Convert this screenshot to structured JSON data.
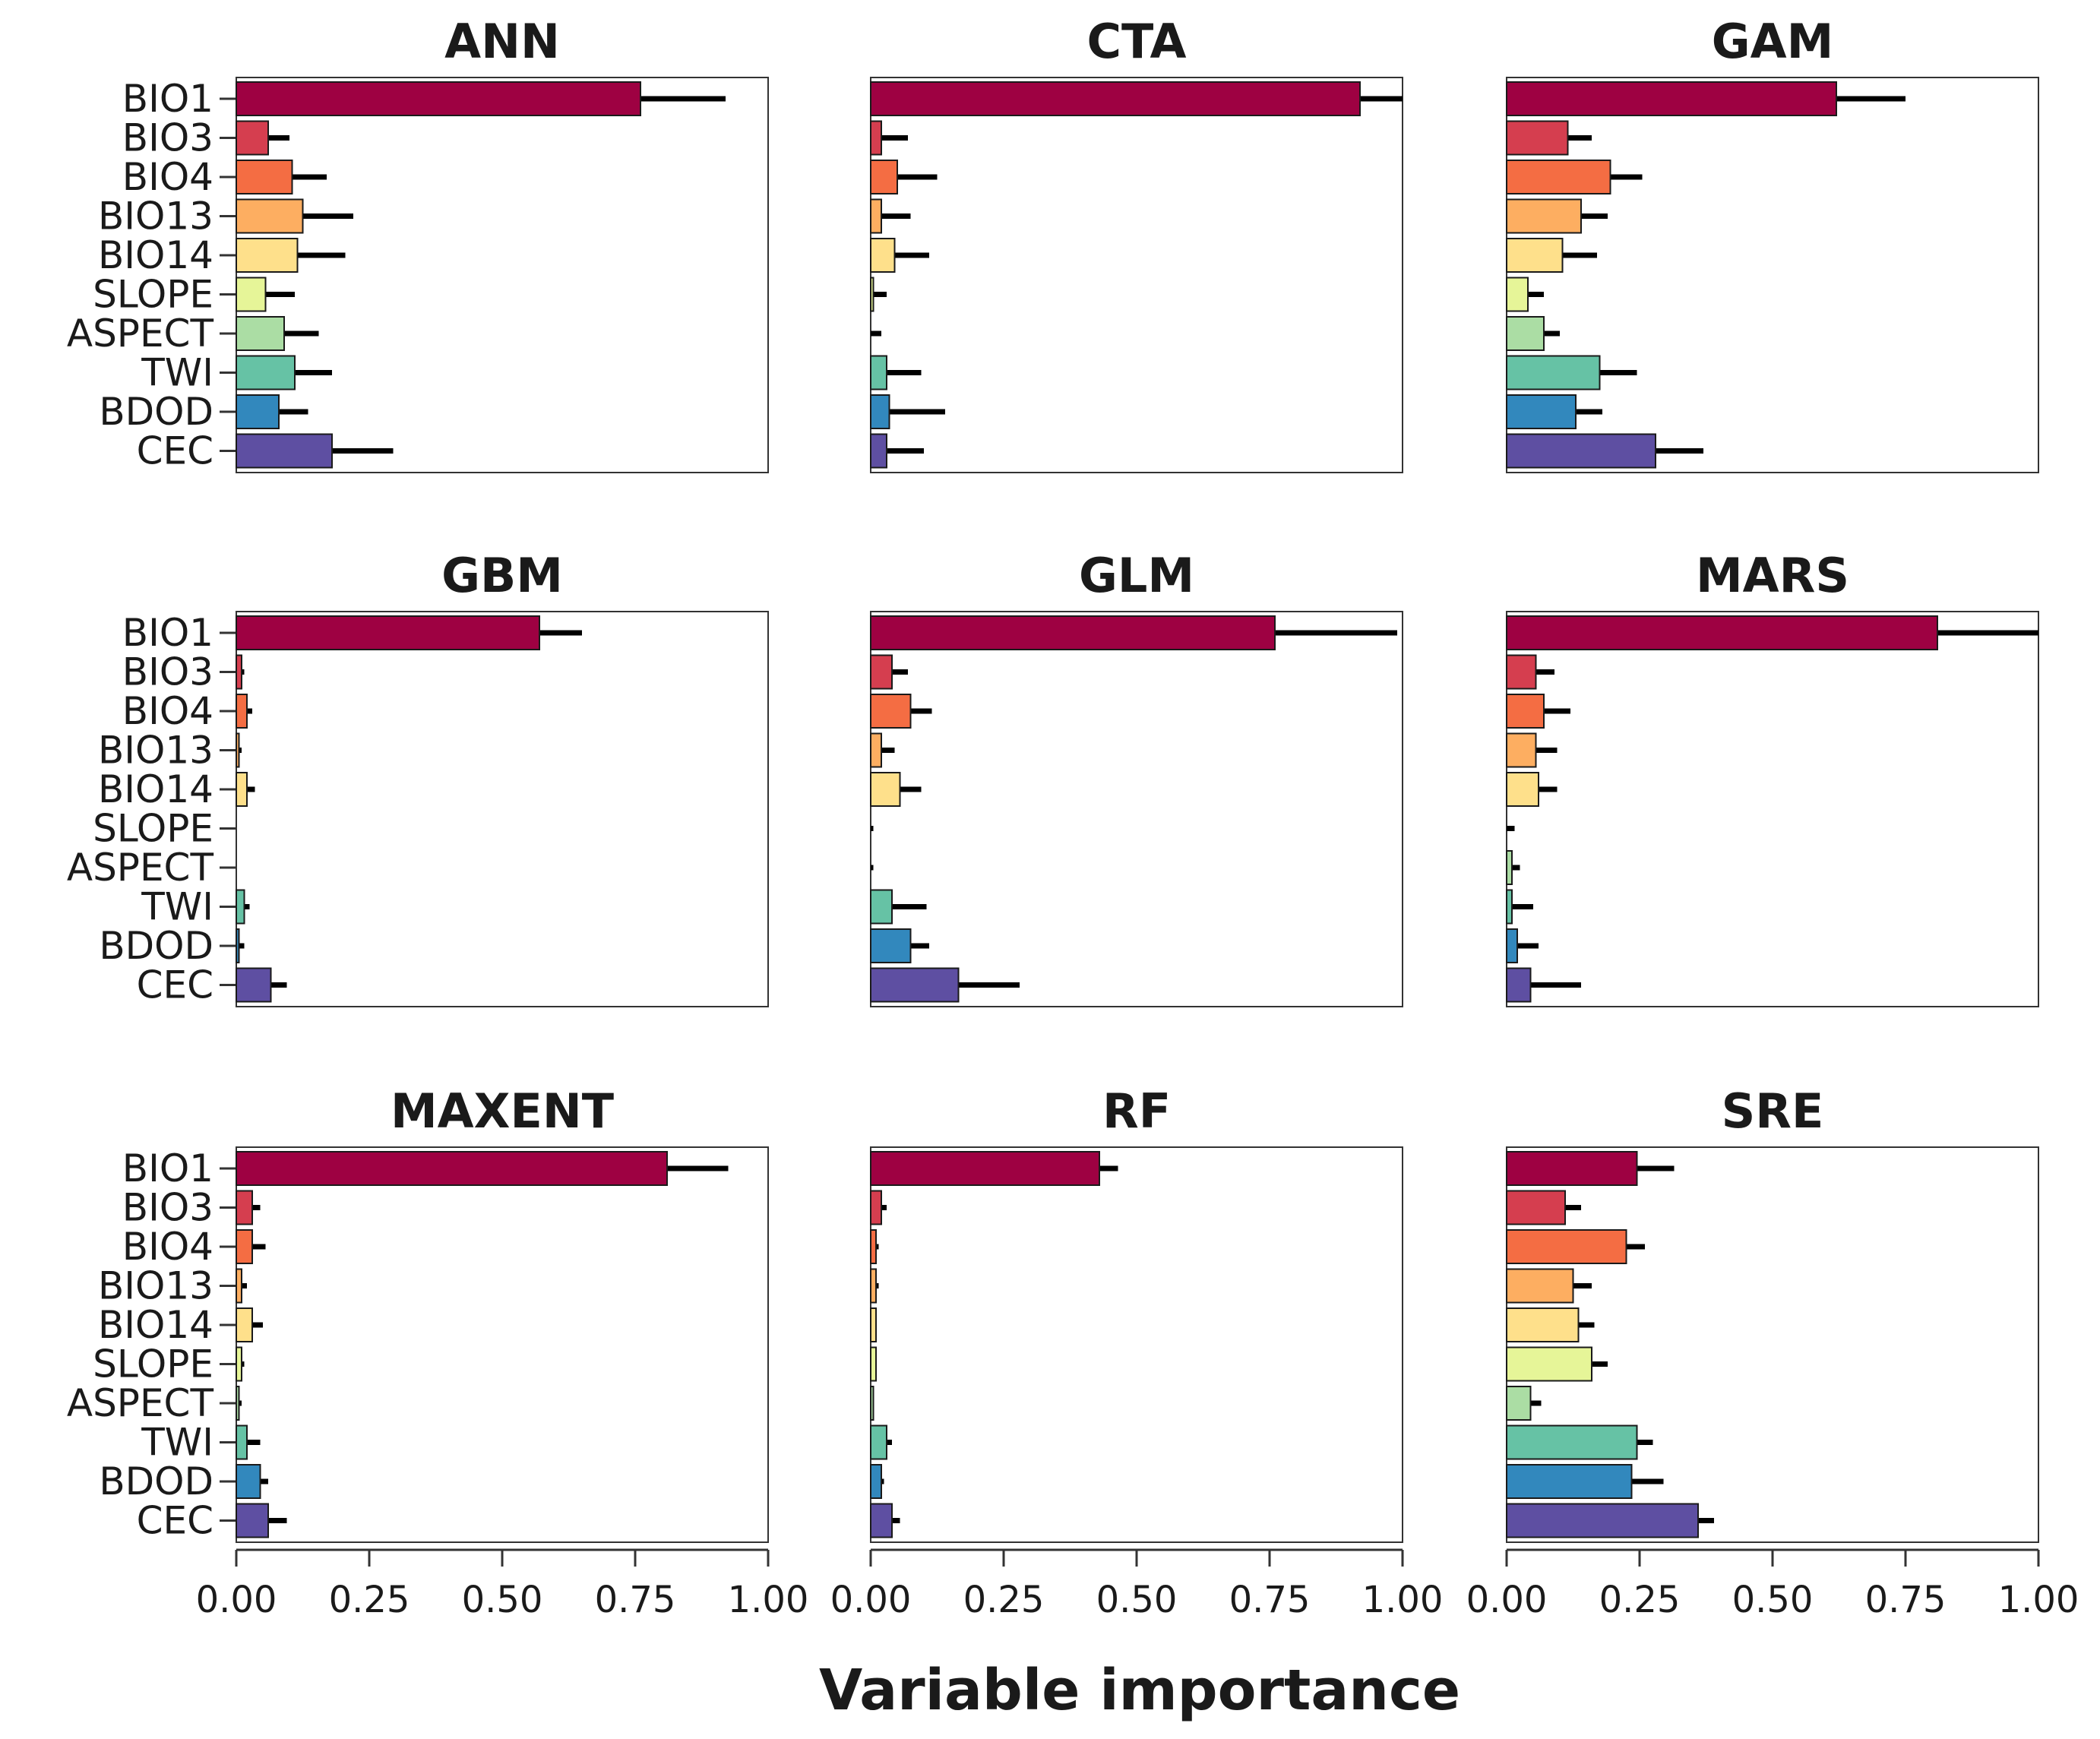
{
  "chart_data": {
    "type": "bar",
    "orientation": "horizontal",
    "xlabel": "Variable importance",
    "xlim": [
      0,
      1
    ],
    "xticks": [
      "0.00",
      "0.25",
      "0.50",
      "0.75",
      "1.00"
    ],
    "categories": [
      "BIO1",
      "BIO3",
      "BIO4",
      "BIO13",
      "BIO14",
      "SLOPE",
      "ASPECT",
      "TWI",
      "BDOD",
      "CEC"
    ],
    "colors": [
      "#9e0142",
      "#d53e4f",
      "#f46d43",
      "#fdae61",
      "#fee08b",
      "#e6f598",
      "#abdda4",
      "#66c2a5",
      "#3288bd",
      "#5e4fa2"
    ],
    "panels": [
      {
        "title": "ANN",
        "values": [
          0.76,
          0.06,
          0.105,
          0.125,
          0.115,
          0.055,
          0.09,
          0.11,
          0.08,
          0.18
        ],
        "errors": [
          0.92,
          0.1,
          0.17,
          0.22,
          0.205,
          0.11,
          0.155,
          0.18,
          0.135,
          0.295
        ]
      },
      {
        "title": "CTA",
        "values": [
          0.92,
          0.02,
          0.05,
          0.02,
          0.045,
          0.005,
          0.0,
          0.03,
          0.035,
          0.03
        ],
        "errors": [
          1.0,
          0.07,
          0.125,
          0.075,
          0.11,
          0.03,
          0.02,
          0.095,
          0.14,
          0.1
        ]
      },
      {
        "title": "GAM",
        "values": [
          0.62,
          0.115,
          0.195,
          0.14,
          0.105,
          0.04,
          0.07,
          0.175,
          0.13,
          0.28
        ],
        "errors": [
          0.75,
          0.16,
          0.255,
          0.19,
          0.17,
          0.07,
          0.1,
          0.245,
          0.18,
          0.37
        ]
      },
      {
        "title": "GBM",
        "values": [
          0.57,
          0.01,
          0.02,
          0.005,
          0.02,
          0.0,
          0.0,
          0.015,
          0.005,
          0.065
        ],
        "errors": [
          0.65,
          0.015,
          0.03,
          0.01,
          0.035,
          0.0,
          0.0,
          0.025,
          0.015,
          0.095
        ]
      },
      {
        "title": "GLM",
        "values": [
          0.76,
          0.04,
          0.075,
          0.02,
          0.055,
          0.0,
          0.0,
          0.04,
          0.075,
          0.165
        ],
        "errors": [
          0.99,
          0.07,
          0.115,
          0.045,
          0.095,
          0.005,
          0.005,
          0.105,
          0.11,
          0.28
        ]
      },
      {
        "title": "MARS",
        "values": [
          0.81,
          0.055,
          0.07,
          0.055,
          0.06,
          0.0,
          0.01,
          0.01,
          0.02,
          0.045
        ],
        "errors": [
          1.0,
          0.09,
          0.12,
          0.095,
          0.095,
          0.015,
          0.025,
          0.05,
          0.06,
          0.14
        ]
      },
      {
        "title": "MAXENT",
        "values": [
          0.81,
          0.03,
          0.03,
          0.01,
          0.03,
          0.01,
          0.005,
          0.02,
          0.045,
          0.06
        ],
        "errors": [
          0.925,
          0.045,
          0.055,
          0.02,
          0.05,
          0.015,
          0.01,
          0.045,
          0.06,
          0.095
        ]
      },
      {
        "title": "RF",
        "values": [
          0.43,
          0.02,
          0.01,
          0.01,
          0.01,
          0.01,
          0.005,
          0.03,
          0.02,
          0.04
        ],
        "errors": [
          0.465,
          0.03,
          0.015,
          0.015,
          0.01,
          0.01,
          0.005,
          0.04,
          0.025,
          0.055
        ]
      },
      {
        "title": "SRE",
        "values": [
          0.245,
          0.11,
          0.225,
          0.125,
          0.135,
          0.16,
          0.045,
          0.245,
          0.235,
          0.36
        ],
        "errors": [
          0.315,
          0.14,
          0.26,
          0.16,
          0.165,
          0.19,
          0.065,
          0.275,
          0.295,
          0.39
        ]
      }
    ]
  }
}
